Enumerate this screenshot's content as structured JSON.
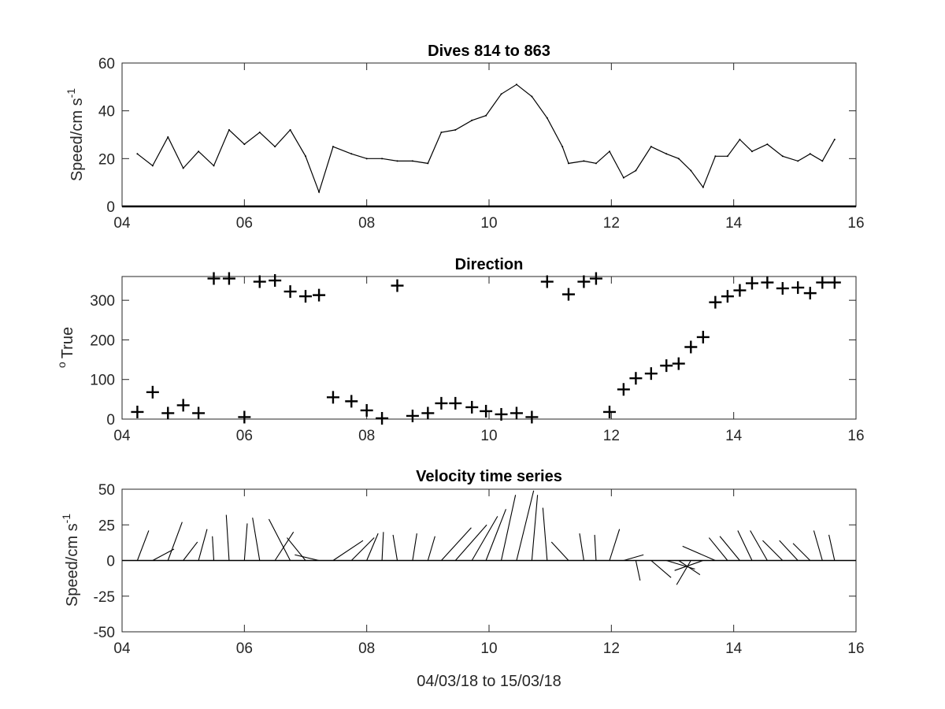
{
  "chart_data": [
    {
      "type": "line",
      "title": "Dives 814 to 863",
      "xlabel": "",
      "ylabel": "Speed/cm s",
      "ylabel_superscript": "-1",
      "xlim": [
        4,
        16
      ],
      "ylim": [
        0,
        60
      ],
      "xticks": [
        "04",
        "06",
        "08",
        "10",
        "12",
        "14",
        "16"
      ],
      "yticks": [
        "0",
        "20",
        "40",
        "60"
      ],
      "grid": false,
      "x": [
        4.25,
        4.5,
        4.75,
        5.0,
        5.25,
        5.5,
        5.75,
        6.0,
        6.25,
        6.5,
        6.75,
        7.0,
        7.22,
        7.45,
        7.75,
        8.0,
        8.25,
        8.5,
        8.75,
        9.0,
        9.22,
        9.45,
        9.72,
        9.95,
        10.2,
        10.45,
        10.7,
        10.95,
        11.2,
        11.3,
        11.55,
        11.75,
        11.97,
        12.2,
        12.4,
        12.65,
        12.9,
        13.1,
        13.3,
        13.5,
        13.7,
        13.9,
        14.1,
        14.3,
        14.55,
        14.8,
        15.05,
        15.25,
        15.45,
        15.65
      ],
      "values": [
        22,
        17,
        29,
        16,
        23,
        17,
        32,
        26,
        31,
        25,
        32,
        21,
        6,
        25,
        22,
        20,
        20,
        19,
        19,
        18,
        31,
        32,
        36,
        38,
        47,
        51,
        46,
        37,
        25,
        18,
        19,
        18,
        23,
        12,
        15,
        25,
        22,
        20,
        15,
        8,
        21,
        21,
        28,
        23,
        26,
        21,
        19,
        22,
        19,
        28
      ]
    },
    {
      "type": "scatter",
      "title": "Direction",
      "xlabel": "",
      "ylabel": "True",
      "ylabel_superscript": "o",
      "marker": "+",
      "xlim": [
        4,
        16
      ],
      "ylim": [
        0,
        360
      ],
      "xticks": [
        "04",
        "06",
        "08",
        "10",
        "12",
        "14",
        "16"
      ],
      "yticks": [
        "0",
        "100",
        "200",
        "300"
      ],
      "grid": false,
      "x": [
        4.25,
        4.5,
        4.75,
        5.0,
        5.25,
        5.5,
        5.75,
        6.0,
        6.25,
        6.5,
        6.75,
        7.0,
        7.22,
        7.45,
        7.75,
        8.0,
        8.25,
        8.5,
        8.75,
        9.0,
        9.22,
        9.45,
        9.72,
        9.95,
        10.2,
        10.45,
        10.7,
        10.95,
        11.3,
        11.55,
        11.75,
        11.97,
        12.2,
        12.4,
        12.65,
        12.9,
        13.1,
        13.3,
        13.5,
        13.7,
        13.9,
        14.1,
        14.3,
        14.55,
        14.8,
        15.05,
        15.25,
        15.45,
        15.65
      ],
      "values": [
        18,
        68,
        15,
        35,
        15,
        355,
        355,
        5,
        347,
        350,
        322,
        310,
        313,
        55,
        45,
        22,
        2,
        337,
        8,
        15,
        40,
        40,
        30,
        20,
        12,
        15,
        5,
        347,
        315,
        347,
        355,
        18,
        75,
        103,
        115,
        135,
        140,
        182,
        207,
        295,
        310,
        325,
        343,
        345,
        330,
        332,
        318,
        345,
        345
      ]
    },
    {
      "type": "stick",
      "title": "Velocity time series",
      "xlabel": "04/03/18 to 15/03/18",
      "ylabel": "Speed/cm s",
      "ylabel_superscript": "-1",
      "xlim": [
        4,
        16
      ],
      "ylim": [
        -50,
        50
      ],
      "xticks": [
        "04",
        "06",
        "08",
        "10",
        "12",
        "14",
        "16"
      ],
      "yticks": [
        "-50",
        "-25",
        "0",
        "25",
        "50"
      ],
      "grid": false,
      "x": [
        4.25,
        4.5,
        4.75,
        5.0,
        5.25,
        5.5,
        5.75,
        6.0,
        6.25,
        6.5,
        6.75,
        7.0,
        7.22,
        7.45,
        7.75,
        8.0,
        8.25,
        8.5,
        8.75,
        9.0,
        9.22,
        9.45,
        9.72,
        9.95,
        10.2,
        10.45,
        10.7,
        10.95,
        11.3,
        11.55,
        11.75,
        11.97,
        12.2,
        12.4,
        12.65,
        12.9,
        13.1,
        13.3,
        13.5,
        13.7,
        13.9,
        14.1,
        14.3,
        14.55,
        14.8,
        15.05,
        15.25,
        15.45,
        15.65
      ],
      "u": [
        8,
        15,
        10,
        10,
        6,
        -1,
        -2,
        2,
        -5,
        13,
        -15,
        -13,
        -17,
        21,
        16,
        8,
        1,
        -3,
        3,
        5,
        21,
        22,
        18,
        14,
        10,
        12,
        4,
        -3,
        -12,
        -3,
        -1,
        7,
        14,
        3,
        14,
        20,
        15,
        -10,
        -20,
        -23,
        -13,
        -14,
        -10,
        -12,
        -14,
        -13,
        -12,
        -6,
        -4
      ],
      "v": [
        21,
        8,
        27,
        13,
        22,
        17,
        32,
        26,
        30,
        20,
        29,
        16,
        4,
        14,
        16,
        19,
        20,
        18,
        19,
        17,
        23,
        25,
        31,
        36,
        46,
        49,
        46,
        37,
        13,
        19,
        18,
        22,
        4,
        -14,
        -12,
        -6,
        -10,
        -17,
        -7,
        10,
        16,
        17,
        21,
        21,
        14,
        14,
        12,
        21,
        18
      ]
    }
  ]
}
